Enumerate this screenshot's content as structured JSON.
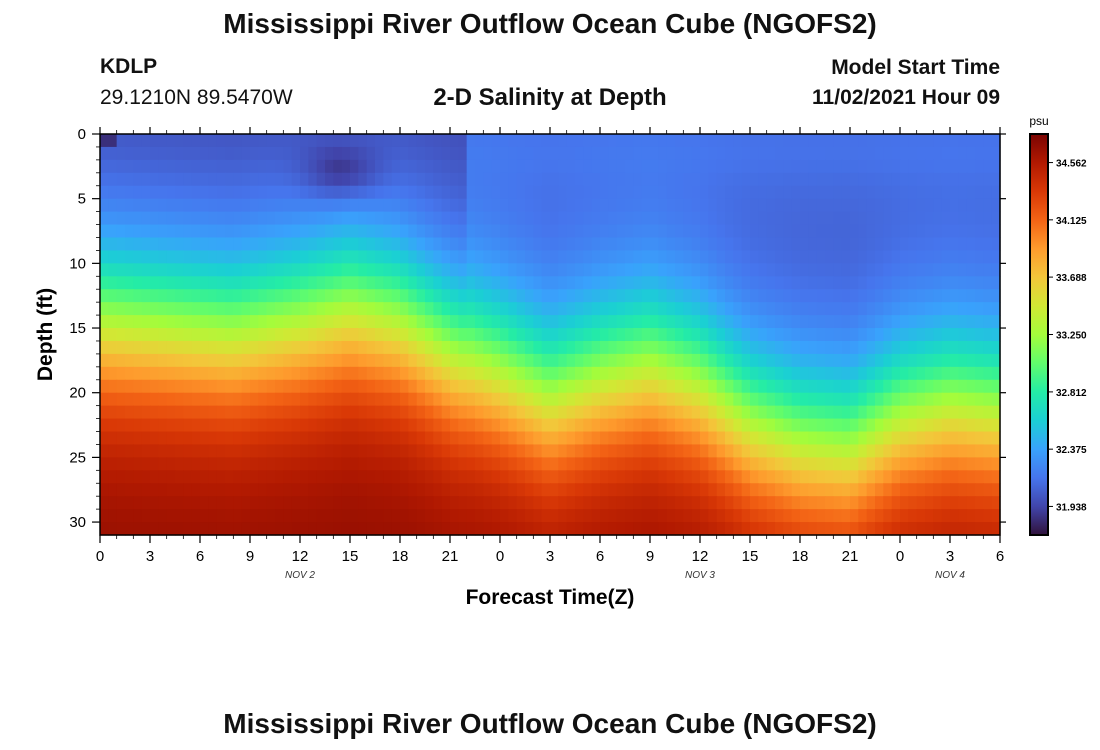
{
  "header": {
    "title": "Mississippi River Outflow Ocean Cube (NGOFS2)",
    "station": "KDLP",
    "coordinates": "29.1210N  89.5470W",
    "subtitle": "2-D Salinity at Depth",
    "model_start_label": "Model Start Time",
    "model_start_value": "11/02/2021 Hour 09"
  },
  "footer": {
    "title": "Mississippi River Outflow Ocean Cube (NGOFS2)"
  },
  "chart_data": {
    "type": "heatmap",
    "title": "2-D Salinity at Depth",
    "xlabel": "Forecast Time(Z)",
    "ylabel": "Depth (ft)",
    "x_ticks": [
      "0",
      "3",
      "6",
      "9",
      "12",
      "15",
      "18",
      "21",
      "0",
      "3",
      "6",
      "9",
      "12",
      "15",
      "18",
      "21",
      "0",
      "3",
      "6"
    ],
    "x_tick_hours": [
      0,
      3,
      6,
      9,
      12,
      15,
      18,
      21,
      24,
      27,
      30,
      33,
      36,
      39,
      42,
      45,
      48,
      51,
      54
    ],
    "x_range_hours": [
      0,
      54
    ],
    "date_labels": [
      {
        "text": "NOV 2",
        "hour": 12
      },
      {
        "text": "NOV 3",
        "hour": 36
      },
      {
        "text": "NOV 4",
        "hour": 51
      }
    ],
    "y_ticks": [
      0,
      5,
      10,
      15,
      20,
      25,
      30
    ],
    "ylim": [
      0,
      31
    ],
    "y_inverted": true,
    "colorbar": {
      "unit": "psu",
      "ticks": [
        "34.562",
        "34.125",
        "33.688",
        "33.250",
        "32.812",
        "32.375",
        "31.938"
      ],
      "range": [
        31.72,
        34.78
      ],
      "colormap": [
        "#30123b",
        "#4145ab",
        "#4675ed",
        "#39a2fc",
        "#1bcfd4",
        "#24eca6",
        "#61fc6c",
        "#a4fc3b",
        "#d1e834",
        "#f3c63a",
        "#fe9b2d",
        "#f36315",
        "#d93806",
        "#b11901",
        "#7a0402"
      ]
    },
    "surface_salinity_psu": 31.95,
    "bottom_salinity_psu": 34.7,
    "halocline_depth_ft": [
      {
        "hour": 0,
        "depth": 14.5
      },
      {
        "hour": 4,
        "depth": 15.0
      },
      {
        "hour": 8,
        "depth": 15.5
      },
      {
        "hour": 12,
        "depth": 14.5
      },
      {
        "hour": 15,
        "depth": 13.5
      },
      {
        "hour": 18,
        "depth": 14.5
      },
      {
        "hour": 21,
        "depth": 17.0
      },
      {
        "hour": 24,
        "depth": 18.5
      },
      {
        "hour": 27,
        "depth": 20.5
      },
      {
        "hour": 30,
        "depth": 19.0
      },
      {
        "hour": 33,
        "depth": 18.0
      },
      {
        "hour": 36,
        "depth": 19.5
      },
      {
        "hour": 39,
        "depth": 22.5
      },
      {
        "hour": 42,
        "depth": 24.0
      },
      {
        "hour": 45,
        "depth": 24.5
      },
      {
        "hour": 48,
        "depth": 22.0
      },
      {
        "hour": 51,
        "depth": 21.0
      },
      {
        "hour": 54,
        "depth": 21.5
      }
    ],
    "low_salinity_pocket": {
      "hour": 14.5,
      "depth_ft": 3,
      "salinity_psu": 31.72
    }
  }
}
